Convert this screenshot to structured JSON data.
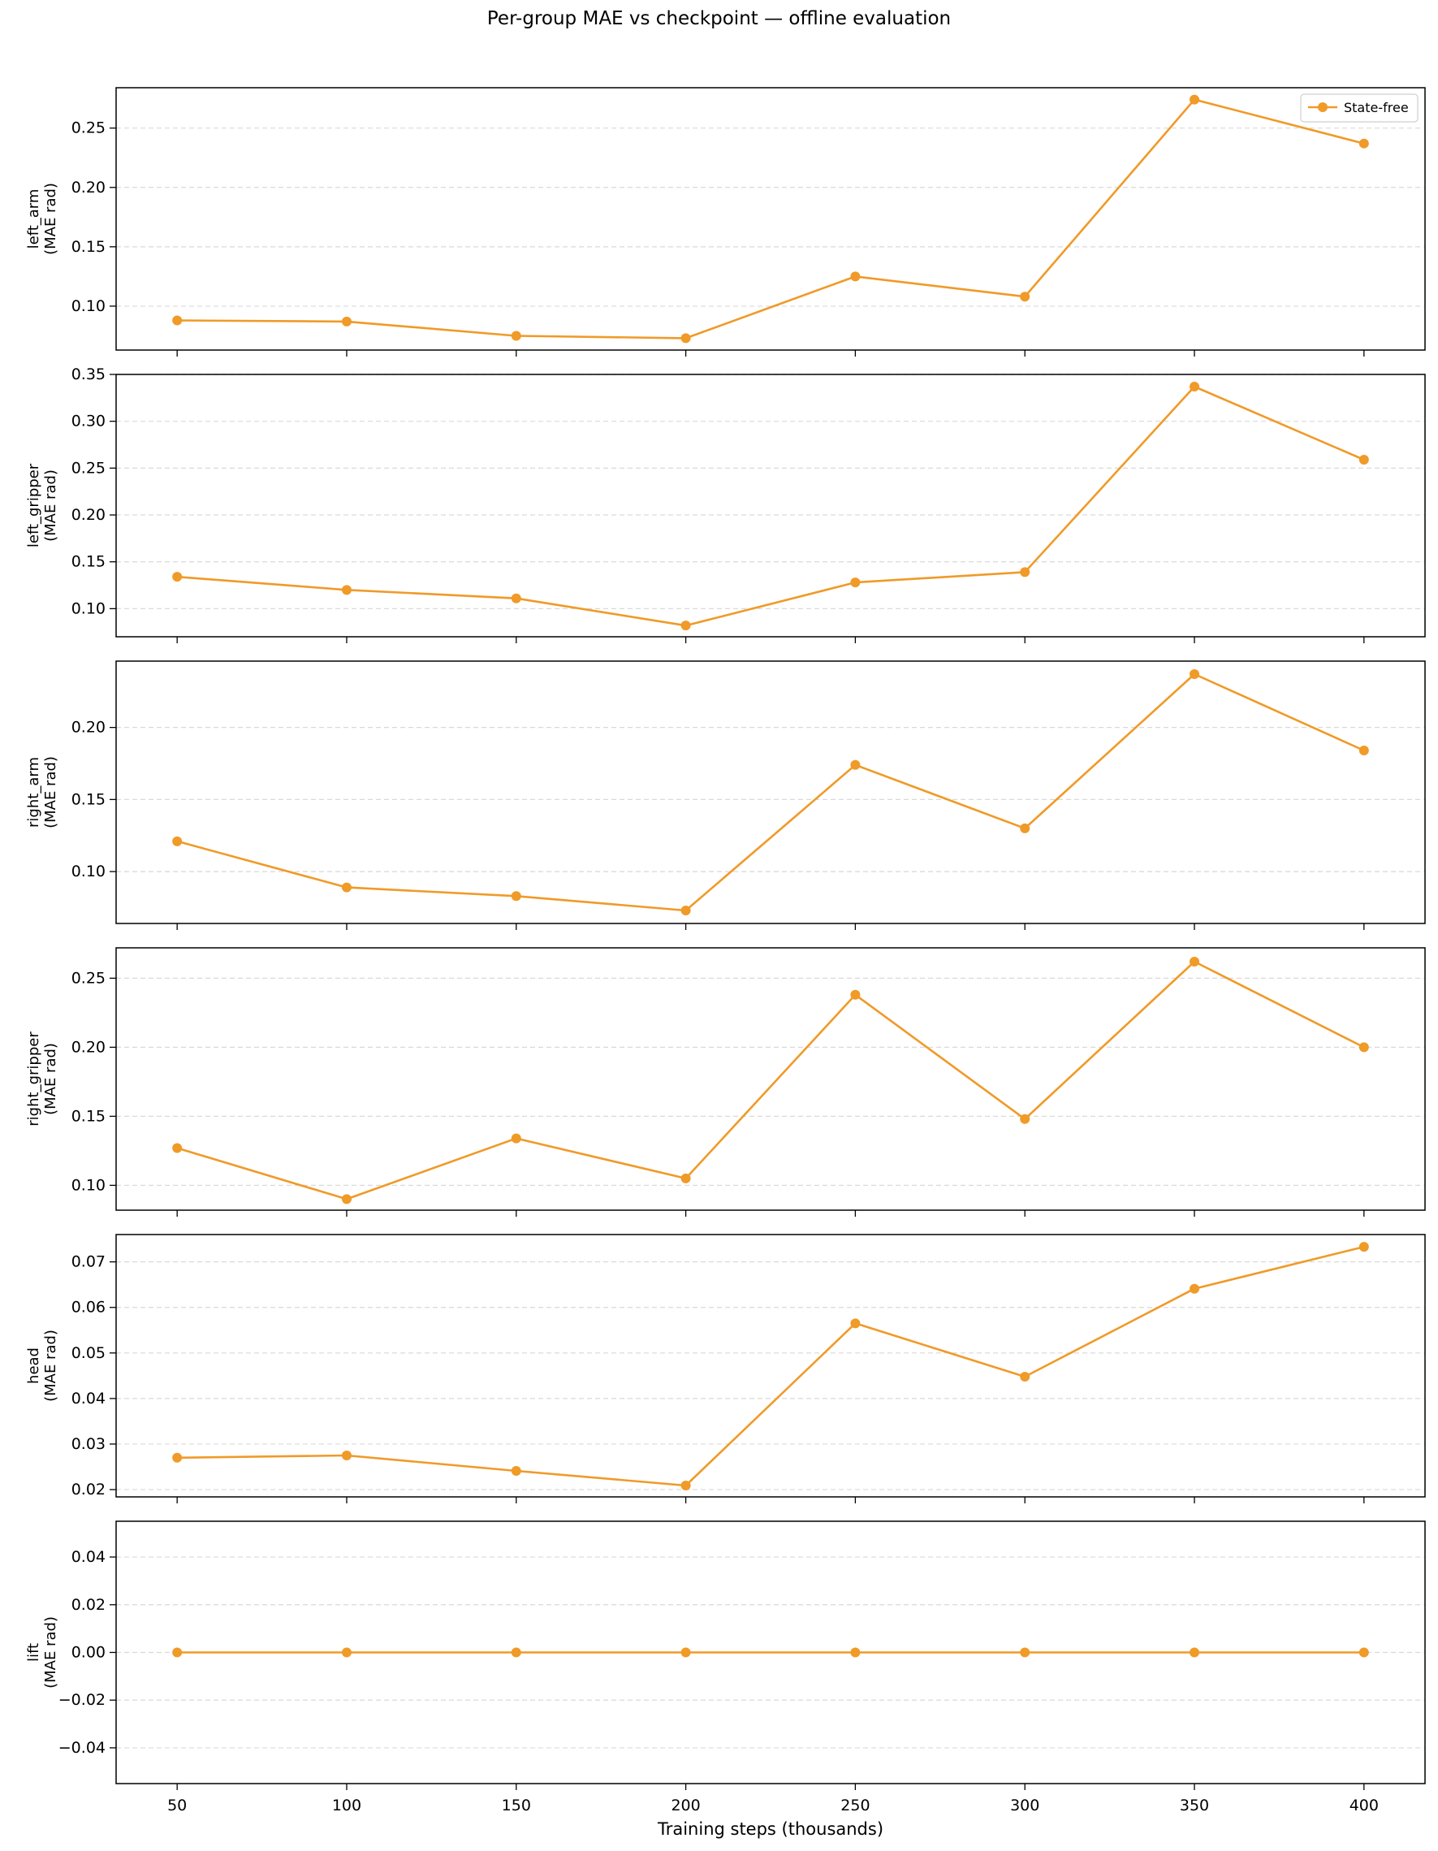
{
  "title": "Per-group MAE vs checkpoint — offline evaluation",
  "xlabel": "Training steps (thousands)",
  "legend_label": "State-free",
  "series_color": "#F09A28",
  "chart_data": {
    "type": "line",
    "title": "Per-group MAE vs checkpoint — offline evaluation",
    "xlabel": "Training steps (thousands)",
    "x": [
      50,
      100,
      150,
      200,
      250,
      300,
      350,
      400
    ],
    "xticks": [
      "50",
      "100",
      "150",
      "200",
      "250",
      "300",
      "350",
      "400"
    ],
    "xlim": [
      32,
      418
    ],
    "legend": {
      "entries": [
        "State-free"
      ],
      "placement": "top-right",
      "panel": 0
    },
    "grid": {
      "y": true,
      "style": "dashed"
    },
    "panels": [
      {
        "ylabel_line1": "left_arm",
        "ylabel_line2": "(MAE rad)",
        "ylim": [
          0.063,
          0.284
        ],
        "yticks": [
          0.1,
          0.15,
          0.2,
          0.25
        ],
        "ytick_labels": [
          "0.10",
          "0.15",
          "0.20",
          "0.25"
        ],
        "series": [
          {
            "name": "State-free",
            "values": [
              0.088,
              0.087,
              0.075,
              0.073,
              0.125,
              0.108,
              0.274,
              0.237
            ]
          }
        ]
      },
      {
        "ylabel_line1": "left_gripper",
        "ylabel_line2": "(MAE rad)",
        "ylim": [
          0.07,
          0.35
        ],
        "yticks": [
          0.1,
          0.15,
          0.2,
          0.25,
          0.3,
          0.35
        ],
        "ytick_labels": [
          "0.10",
          "0.15",
          "0.20",
          "0.25",
          "0.30",
          "0.35"
        ],
        "series": [
          {
            "name": "State-free",
            "values": [
              0.134,
              0.12,
              0.111,
              0.082,
              0.128,
              0.139,
              0.337,
              0.259
            ]
          }
        ]
      },
      {
        "ylabel_line1": "right_arm",
        "ylabel_line2": "(MAE rad)",
        "ylim": [
          0.064,
          0.246
        ],
        "yticks": [
          0.1,
          0.15,
          0.2
        ],
        "ytick_labels": [
          "0.10",
          "0.15",
          "0.20"
        ],
        "series": [
          {
            "name": "State-free",
            "values": [
              0.121,
              0.089,
              0.083,
              0.073,
              0.174,
              0.13,
              0.237,
              0.184
            ]
          }
        ]
      },
      {
        "ylabel_line1": "right_gripper",
        "ylabel_line2": "(MAE rad)",
        "ylim": [
          0.082,
          0.272
        ],
        "yticks": [
          0.1,
          0.15,
          0.2,
          0.25
        ],
        "ytick_labels": [
          "0.10",
          "0.15",
          "0.20",
          "0.25"
        ],
        "series": [
          {
            "name": "State-free",
            "values": [
              0.127,
              0.09,
              0.134,
              0.105,
              0.238,
              0.148,
              0.262,
              0.2
            ]
          }
        ]
      },
      {
        "ylabel_line1": "head",
        "ylabel_line2": "(MAE rad)",
        "ylim": [
          0.0184,
          0.076
        ],
        "yticks": [
          0.02,
          0.03,
          0.04,
          0.05,
          0.06,
          0.07
        ],
        "ytick_labels": [
          "0.02",
          "0.03",
          "0.04",
          "0.05",
          "0.06",
          "0.07"
        ],
        "series": [
          {
            "name": "State-free",
            "values": [
              0.027,
              0.0275,
              0.0241,
              0.0209,
              0.0565,
              0.0448,
              0.0641,
              0.0733
            ]
          }
        ]
      },
      {
        "ylabel_line1": "lift",
        "ylabel_line2": "(MAE rad)",
        "ylim": [
          -0.055,
          0.055
        ],
        "yticks": [
          -0.04,
          -0.02,
          0.0,
          0.02,
          0.04
        ],
        "ytick_labels": [
          "−0.04",
          "−0.02",
          "0.00",
          "0.02",
          "0.04"
        ],
        "series": [
          {
            "name": "State-free",
            "values": [
              0,
              0,
              0,
              0,
              0,
              0,
              0,
              0
            ]
          }
        ]
      }
    ]
  }
}
